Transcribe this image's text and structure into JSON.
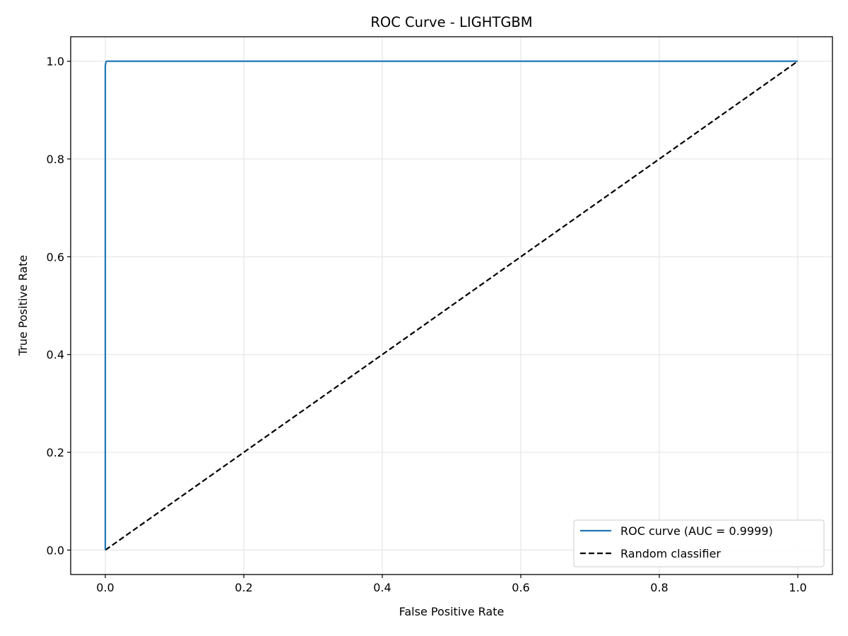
{
  "chart_data": {
    "type": "line",
    "title": "ROC Curve - LIGHTGBM",
    "xlabel": "False Positive Rate",
    "ylabel": "True Positive Rate",
    "xlim": [
      -0.05,
      1.05
    ],
    "ylim": [
      -0.05,
      1.05
    ],
    "xticks": [
      0.0,
      0.2,
      0.4,
      0.6,
      0.8,
      1.0
    ],
    "yticks": [
      0.0,
      0.2,
      0.4,
      0.6,
      0.8,
      1.0
    ],
    "xtick_labels": [
      "0.0",
      "0.2",
      "0.4",
      "0.6",
      "0.8",
      "1.0"
    ],
    "ytick_labels": [
      "0.0",
      "0.2",
      "0.4",
      "0.6",
      "0.8",
      "1.0"
    ],
    "grid": true,
    "legend_position": "lower-right",
    "series": [
      {
        "name": "ROC curve (AUC = 0.9999)",
        "color": "#1f77b4",
        "style": "solid",
        "x": [
          0.0,
          0.0,
          0.0008,
          0.002,
          1.0
        ],
        "y": [
          0.0,
          0.99,
          0.998,
          1.0,
          1.0
        ]
      },
      {
        "name": "Random classifier",
        "color": "#000000",
        "style": "dashed",
        "x": [
          0.0,
          1.0
        ],
        "y": [
          0.0,
          1.0
        ]
      }
    ]
  }
}
